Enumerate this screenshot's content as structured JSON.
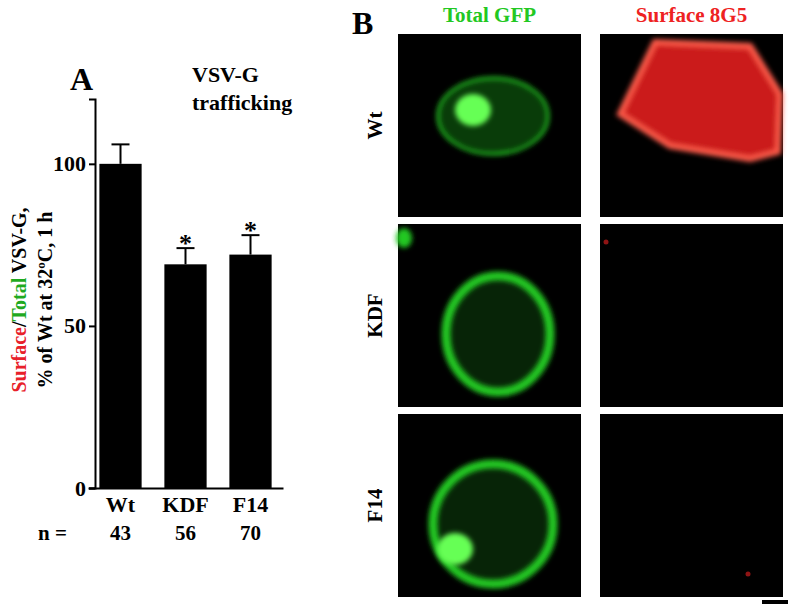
{
  "chart_data": {
    "type": "bar",
    "panel_label": "A",
    "title": [
      "VSV-G",
      "trafficking"
    ],
    "y_label": [
      [
        {
          "text": "Surface",
          "color": "#e8202a"
        },
        {
          "text": "/"
        },
        {
          "text": "Total",
          "color": "#1faa1f"
        },
        {
          "text": " VSV-G,"
        }
      ],
      [
        {
          "text": "% of Wt at 32ºC, 1 h"
        }
      ]
    ],
    "categories": [
      "Wt",
      "KDF",
      "F14"
    ],
    "values": [
      100,
      69,
      72
    ],
    "errors": [
      6,
      5,
      6
    ],
    "significance": [
      null,
      "*",
      "*"
    ],
    "n_label": "n =",
    "n": [
      43,
      56,
      70
    ],
    "color": "#000000",
    "ylim": [
      0,
      120
    ],
    "yticks": [
      0,
      50,
      100
    ]
  },
  "images": {
    "panel_label": "B",
    "columns": [
      {
        "label": "Total GFP",
        "color": "#22c822"
      },
      {
        "label": "Surface 8G5",
        "color": "#ee2222"
      }
    ],
    "rows": [
      "Wt",
      "KDF",
      "F14"
    ]
  }
}
